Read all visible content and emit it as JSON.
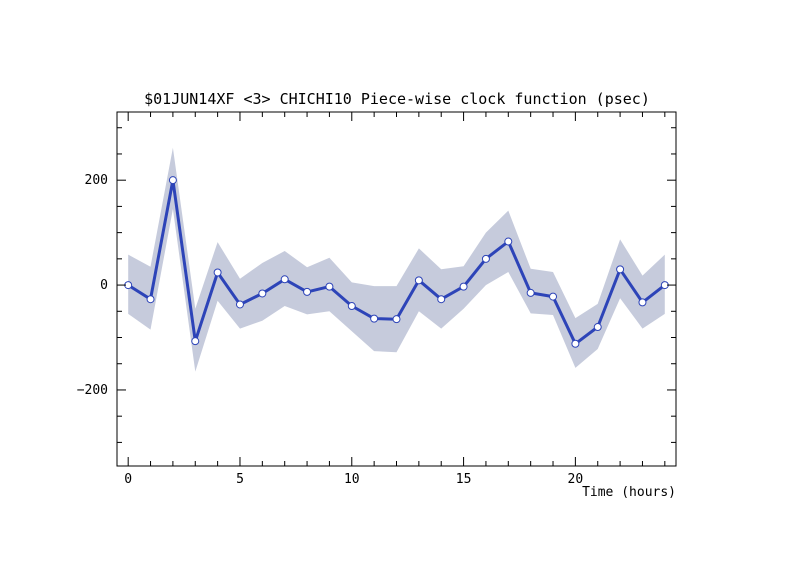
{
  "chart_data": {
    "type": "line",
    "title": "$01JUN14XF <3>  CHICHI10  Piece-wise clock function (psec)",
    "xlabel": "Time (hours)",
    "ylabel": "",
    "xlim": [
      -0.5,
      24.5
    ],
    "ylim": [
      -345,
      330
    ],
    "x_ticks": [
      0,
      5,
      10,
      15,
      20
    ],
    "y_ticks": [
      -200,
      0,
      200
    ],
    "grid": false,
    "colors": {
      "line": "#2d44b8",
      "band": "#c6cbdc",
      "marker_fill": "#ffffff"
    },
    "series": [
      {
        "x": [
          0,
          1,
          2,
          3,
          4,
          5,
          6,
          7,
          8,
          9,
          10,
          11,
          12,
          13,
          14,
          15,
          16,
          17,
          18,
          19,
          20,
          21,
          22,
          23,
          24
        ],
        "values": [
          0,
          -27,
          200,
          -107,
          24,
          -37,
          -16,
          11,
          -13,
          -3,
          -40,
          -64,
          -65,
          9,
          -27,
          -3,
          50,
          83,
          -15,
          -22,
          -112,
          -80,
          30,
          -33,
          0
        ],
        "upper": [
          58,
          35,
          262,
          -45,
          82,
          12,
          42,
          65,
          34,
          52,
          5,
          -2,
          -2,
          70,
          30,
          36,
          100,
          142,
          31,
          25,
          -63,
          -36,
          87,
          18,
          58
        ],
        "lower": [
          -55,
          -85,
          145,
          -165,
          -30,
          -83,
          -68,
          -40,
          -56,
          -50,
          -88,
          -126,
          -128,
          -50,
          -83,
          -45,
          0,
          25,
          -54,
          -57,
          -158,
          -122,
          -25,
          -83,
          -55
        ]
      }
    ]
  }
}
